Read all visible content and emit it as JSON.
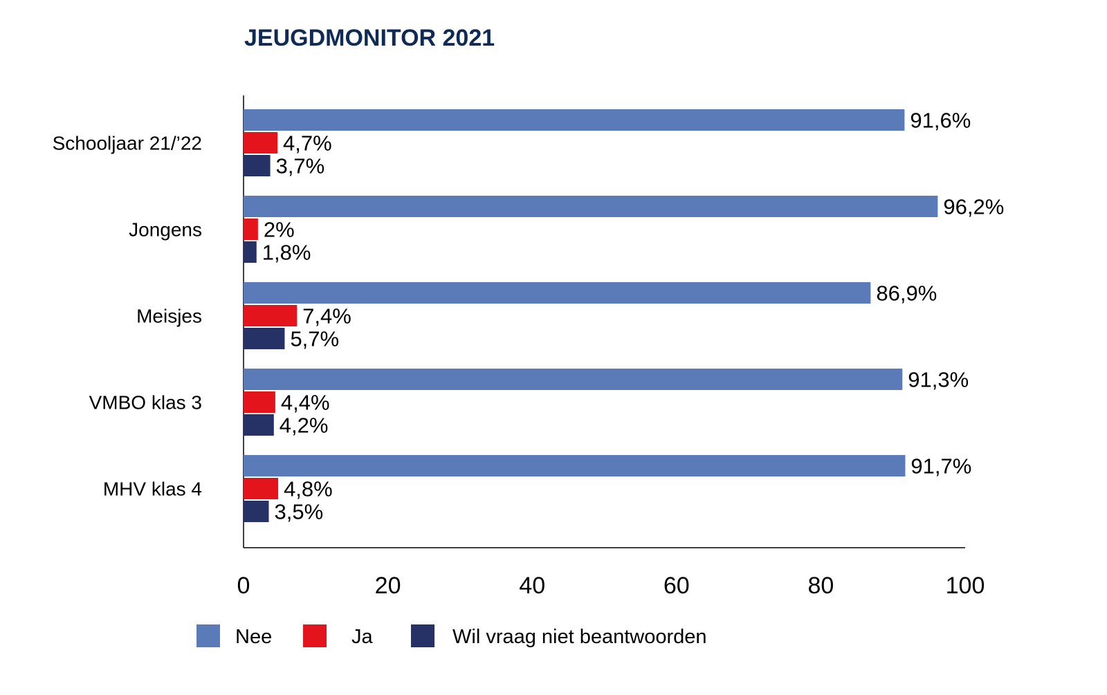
{
  "chart_data": {
    "type": "bar",
    "orientation": "horizontal",
    "title": "JEUGDMONITOR 2021",
    "categories": [
      "Schooljaar 21/’22",
      "Jongens",
      "Meisjes",
      "VMBO klas 3",
      "MHV klas 4"
    ],
    "series": [
      {
        "name": "Nee",
        "color": "#5b7ab8",
        "values": [
          91.6,
          96.2,
          86.9,
          91.3,
          91.7
        ],
        "labels": [
          "91,6%",
          "96,2%",
          "86,9%",
          "91,3%",
          "91,7%"
        ]
      },
      {
        "name": "Ja",
        "color": "#e3141b",
        "values": [
          4.7,
          2,
          7.4,
          4.4,
          4.8
        ],
        "labels": [
          "4,7%",
          "2%",
          "7,4%",
          "4,4%",
          "4,8%"
        ]
      },
      {
        "name": "Wil vraag niet beantwoorden",
        "color": "#263265",
        "values": [
          3.7,
          1.8,
          5.7,
          4.2,
          3.5
        ],
        "labels": [
          "3,7%",
          "1,8%",
          "5,7%",
          "4,2%",
          "3,5%"
        ]
      }
    ],
    "xlim": [
      0,
      100
    ],
    "xticks": [
      "0",
      "20",
      "40",
      "60",
      "80",
      "100"
    ],
    "grid": false,
    "legend": "bottom"
  }
}
